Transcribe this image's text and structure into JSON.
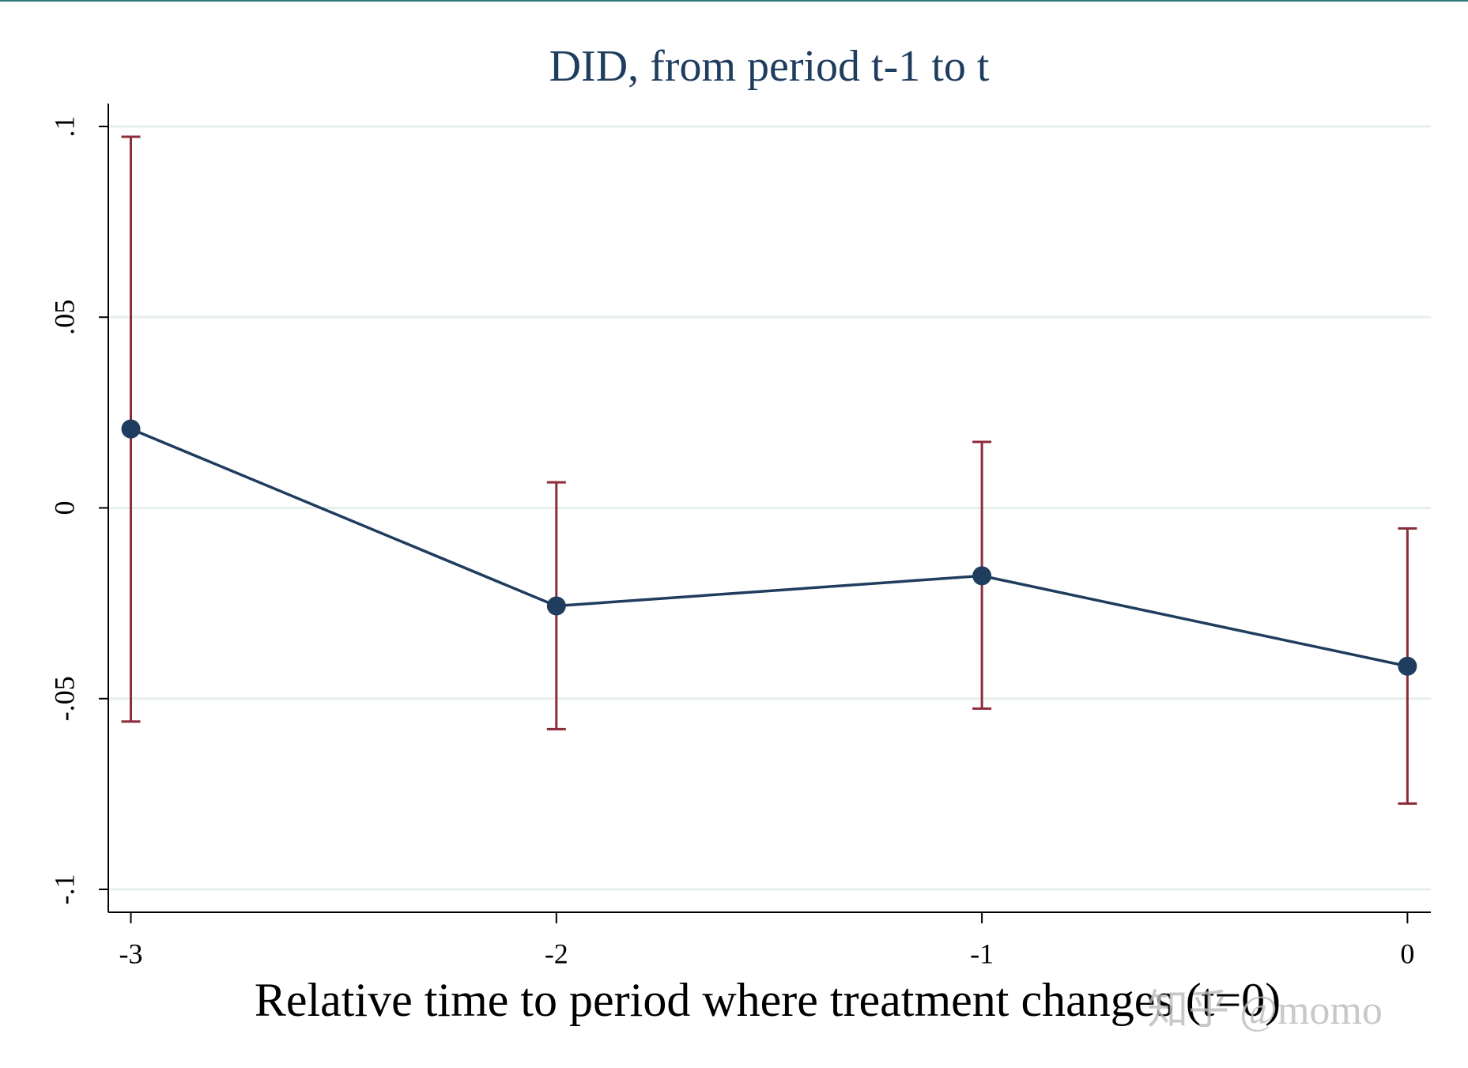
{
  "chart_data": {
    "type": "line-errorbar",
    "title": "DID, from period t-1 to t",
    "x_label": "Relative time to period where treatment changes (t=0)",
    "x": [
      -3,
      -2,
      -1,
      0
    ],
    "series": [
      {
        "values": [
          0.0207,
          -0.0257,
          -0.0178,
          -0.0415
        ],
        "color": "#1f3d5e",
        "ci_upper": [
          0.0973,
          0.0067,
          0.0173,
          -0.0054
        ],
        "ci_lower": [
          -0.056,
          -0.058,
          -0.0526,
          -0.0775
        ],
        "ci_color": "#8b2c3a"
      }
    ],
    "xlim": [
      -3.053,
      0.055
    ],
    "ylim": [
      -0.106,
      0.106
    ],
    "xticks": [
      -3,
      -2,
      -1,
      0
    ],
    "yticks": [
      {
        "value": -0.1,
        "label": "-.1"
      },
      {
        "value": -0.05,
        "label": "-.05"
      },
      {
        "value": 0,
        "label": "0"
      },
      {
        "value": 0.05,
        "label": ".05"
      },
      {
        "value": 0.1,
        "label": ".1"
      }
    ],
    "grid": true,
    "watermark": "知乎 @momo"
  }
}
